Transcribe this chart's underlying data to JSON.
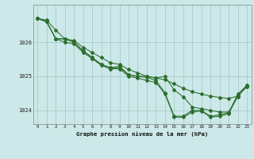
{
  "xlabel": "Graphe pression niveau de la mer (hPa)",
  "bg_color": "#cce8e8",
  "grid_color": "#aacccc",
  "line_color": "#2d6e2d",
  "hours": [
    0,
    1,
    2,
    3,
    4,
    5,
    6,
    7,
    8,
    9,
    10,
    11,
    12,
    13,
    14,
    15,
    16,
    17,
    18,
    19,
    20,
    21,
    22,
    23
  ],
  "line1_y": [
    1026.7,
    1026.65,
    1026.35,
    1026.1,
    1026.05,
    1025.85,
    1025.7,
    1025.55,
    1025.4,
    1025.35,
    1025.2,
    1025.1,
    1025.0,
    1024.95,
    1024.9,
    1024.78,
    1024.65,
    1024.55,
    1024.48,
    1024.42,
    1024.38,
    1024.35,
    1024.42,
    1024.7
  ],
  "line2_y": [
    1026.7,
    1026.6,
    1026.1,
    1026.1,
    1026.0,
    1025.75,
    1025.55,
    1025.35,
    1025.25,
    1025.25,
    1025.05,
    1025.0,
    1025.0,
    1024.95,
    1025.0,
    1024.6,
    1024.4,
    1024.1,
    1024.05,
    1024.0,
    1023.95,
    1023.95,
    1024.4,
    1024.75
  ],
  "line3_y": [
    1026.7,
    1026.6,
    1026.1,
    1026.1,
    1026.0,
    1025.75,
    1025.55,
    1025.35,
    1025.25,
    1025.3,
    1025.05,
    1025.0,
    1024.97,
    1024.88,
    1024.52,
    1023.83,
    1023.83,
    1024.0,
    1024.0,
    1023.83,
    1023.87,
    1023.93,
    1024.48,
    1024.73
  ],
  "line4_y": [
    1026.7,
    1026.6,
    1026.1,
    1026.0,
    1025.95,
    1025.7,
    1025.52,
    1025.32,
    1025.22,
    1025.22,
    1025.0,
    1024.95,
    1024.88,
    1024.82,
    1024.48,
    1023.8,
    1023.8,
    1023.95,
    1023.98,
    1023.8,
    1023.83,
    1023.9,
    1024.43,
    1024.7
  ],
  "ylim": [
    1023.6,
    1027.1
  ],
  "yticks": [
    1024,
    1025,
    1026
  ],
  "xticks": [
    0,
    1,
    2,
    3,
    4,
    5,
    6,
    7,
    8,
    9,
    10,
    11,
    12,
    13,
    14,
    15,
    16,
    17,
    18,
    19,
    20,
    21,
    22,
    23
  ]
}
